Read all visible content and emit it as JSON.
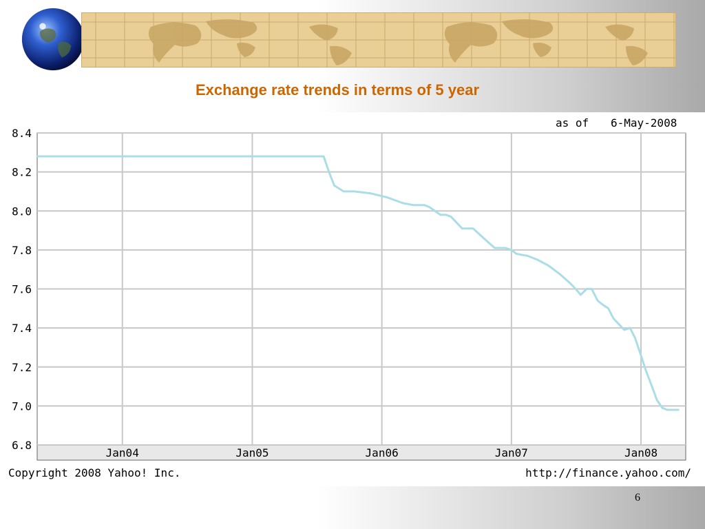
{
  "slide": {
    "title": "Exchange rate trends in terms of 5 year",
    "page_number": "6"
  },
  "chart_data": {
    "type": "line",
    "title": "",
    "xlabel": "",
    "ylabel": "",
    "as_of_label": "as of",
    "as_of_date": "6-May-2008",
    "copyright": "Copyright 2008 Yahoo! Inc.",
    "source_url": "http://finance.yahoo.com/",
    "xlim": [
      "2003-05-06",
      "2008-05-06"
    ],
    "ylim": [
      6.8,
      8.4
    ],
    "y_ticks": [
      6.8,
      7.0,
      7.2,
      7.4,
      7.6,
      7.8,
      8.0,
      8.2,
      8.4
    ],
    "y_tick_labels": [
      "6.8",
      "7.0",
      "7.2",
      "7.4",
      "7.6",
      "7.8",
      "8.0",
      "8.2",
      "8.4"
    ],
    "x_ticks": [
      "2004-01-01",
      "2005-01-01",
      "2006-01-01",
      "2007-01-01",
      "2008-01-01"
    ],
    "x_tick_labels": [
      "Jan04",
      "Jan05",
      "Jan06",
      "Jan07",
      "Jan08"
    ],
    "grid": true,
    "line_color": "#aadde6",
    "series": [
      {
        "x": [
          "2003-05-06",
          "2004-06-01",
          "2005-07-21",
          "2005-08-05",
          "2005-08-20",
          "2005-09-15",
          "2005-10-15",
          "2005-12-01",
          "2006-01-15",
          "2006-03-01",
          "2006-04-01",
          "2006-05-01",
          "2006-05-15",
          "2006-06-15",
          "2006-07-01",
          "2006-07-15",
          "2006-08-15",
          "2006-09-15",
          "2006-10-15",
          "2006-11-15",
          "2006-12-15",
          "2007-01-01",
          "2007-01-15",
          "2007-02-15",
          "2007-03-15",
          "2007-04-15",
          "2007-05-15",
          "2007-06-15",
          "2007-07-01",
          "2007-07-15",
          "2007-08-01",
          "2007-08-15",
          "2007-09-01",
          "2007-09-15",
          "2007-10-01",
          "2007-10-15",
          "2007-10-25",
          "2007-11-15",
          "2007-12-01",
          "2007-12-15",
          "2008-01-01",
          "2008-01-15",
          "2008-02-01",
          "2008-02-15",
          "2008-03-01",
          "2008-03-15",
          "2008-04-01",
          "2008-04-15"
        ],
        "y": [
          8.28,
          8.28,
          8.28,
          8.2,
          8.13,
          8.1,
          8.1,
          8.09,
          8.07,
          8.04,
          8.03,
          8.03,
          8.02,
          7.98,
          7.98,
          7.97,
          7.91,
          7.91,
          7.86,
          7.81,
          7.81,
          7.8,
          7.78,
          7.77,
          7.75,
          7.72,
          7.68,
          7.63,
          7.6,
          7.57,
          7.6,
          7.6,
          7.54,
          7.52,
          7.5,
          7.45,
          7.43,
          7.39,
          7.4,
          7.35,
          7.26,
          7.18,
          7.1,
          7.03,
          6.99,
          6.98,
          6.98,
          6.98
        ]
      }
    ]
  }
}
